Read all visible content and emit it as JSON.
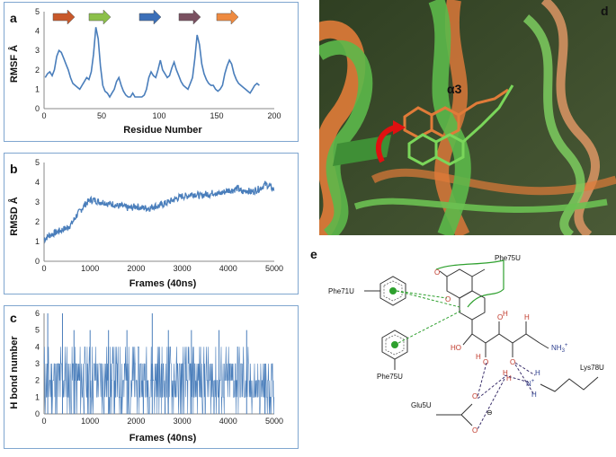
{
  "panels": {
    "a": {
      "letter": "a"
    },
    "b": {
      "letter": "b"
    },
    "c": {
      "letter": "c"
    },
    "d": {
      "letter": "d",
      "label": "α3"
    },
    "e": {
      "letter": "e"
    }
  },
  "chart_data": [
    {
      "type": "line",
      "panel": "a",
      "xlabel": "Residue Number",
      "ylabel": "RMSF Å",
      "xlim": [
        0,
        200
      ],
      "ylim": [
        0,
        5
      ],
      "xticks": [
        0,
        50,
        100,
        150,
        200
      ],
      "yticks": [
        0,
        1,
        2,
        3,
        4,
        5
      ],
      "series_color": "#4a7ebb",
      "x": [
        1,
        3,
        5,
        7,
        9,
        11,
        13,
        15,
        17,
        19,
        21,
        23,
        25,
        27,
        29,
        31,
        33,
        35,
        37,
        39,
        41,
        43,
        45,
        47,
        49,
        51,
        53,
        55,
        57,
        59,
        61,
        63,
        65,
        67,
        69,
        71,
        73,
        75,
        77,
        79,
        81,
        83,
        85,
        87,
        89,
        91,
        93,
        95,
        97,
        99,
        101,
        103,
        105,
        107,
        109,
        111,
        113,
        115,
        117,
        119,
        121,
        123,
        125,
        127,
        129,
        131,
        133,
        135,
        137,
        139,
        141,
        143,
        145,
        147,
        149,
        151,
        153,
        155,
        157,
        159,
        161,
        163,
        165,
        167,
        169,
        171,
        173,
        175,
        177,
        179,
        181,
        183,
        185,
        187
      ],
      "y": [
        1.6,
        1.8,
        1.9,
        1.7,
        2.0,
        2.7,
        3.0,
        2.9,
        2.6,
        2.3,
        2.0,
        1.6,
        1.3,
        1.2,
        1.1,
        1.0,
        1.2,
        1.4,
        1.6,
        1.5,
        1.9,
        2.8,
        4.2,
        3.6,
        2.2,
        1.2,
        0.9,
        0.8,
        0.6,
        0.8,
        1.0,
        1.4,
        1.6,
        1.2,
        0.9,
        0.7,
        0.6,
        0.6,
        0.8,
        0.6,
        0.6,
        0.6,
        0.6,
        0.7,
        1.0,
        1.6,
        1.9,
        1.7,
        1.6,
        2.0,
        2.5,
        2.0,
        1.8,
        1.6,
        1.7,
        2.1,
        2.4,
        2.0,
        1.7,
        1.4,
        1.2,
        1.1,
        1.0,
        1.3,
        1.6,
        2.6,
        3.8,
        3.3,
        2.3,
        1.8,
        1.5,
        1.3,
        1.2,
        1.2,
        1.0,
        0.9,
        1.0,
        1.2,
        1.8,
        2.2,
        2.5,
        2.3,
        1.8,
        1.5,
        1.3,
        1.2,
        1.1,
        1.0,
        0.9,
        0.8,
        1.0,
        1.2,
        1.3,
        1.2
      ]
    },
    {
      "type": "line",
      "panel": "b",
      "xlabel": "Frames (40ns)",
      "ylabel": "RMSD Å",
      "xlim": [
        0,
        5000
      ],
      "ylim": [
        0,
        5
      ],
      "xticks": [
        0,
        1000,
        2000,
        3000,
        4000,
        5000
      ],
      "yticks": [
        0,
        1,
        2,
        3,
        4,
        5
      ],
      "series_color": "#4a7ebb",
      "x": [
        0,
        100,
        200,
        300,
        400,
        500,
        600,
        700,
        800,
        900,
        1000,
        1100,
        1200,
        1300,
        1400,
        1500,
        1600,
        1700,
        1800,
        1900,
        2000,
        2100,
        2200,
        2300,
        2400,
        2500,
        2600,
        2700,
        2800,
        2900,
        3000,
        3100,
        3200,
        3300,
        3400,
        3500,
        3600,
        3700,
        3800,
        3900,
        4000,
        4100,
        4200,
        4300,
        4400,
        4500,
        4600,
        4700,
        4800,
        4900,
        5000
      ],
      "y": [
        1.1,
        1.3,
        1.4,
        1.5,
        1.6,
        1.7,
        1.9,
        2.3,
        2.6,
        2.9,
        3.1,
        3.1,
        3.0,
        3.0,
        2.9,
        2.9,
        2.8,
        2.8,
        2.7,
        2.7,
        2.8,
        2.7,
        2.7,
        2.7,
        2.8,
        2.8,
        2.9,
        3.0,
        3.1,
        3.2,
        3.3,
        3.3,
        3.4,
        3.4,
        3.3,
        3.4,
        3.4,
        3.5,
        3.4,
        3.5,
        3.6,
        3.6,
        3.7,
        3.5,
        3.6,
        3.5,
        3.6,
        3.7,
        3.9,
        3.8,
        3.6
      ]
    },
    {
      "type": "line",
      "panel": "c",
      "xlabel": "Frames (40ns)",
      "ylabel": "H bond number",
      "xlim": [
        0,
        5000
      ],
      "ylim": [
        0,
        6
      ],
      "xticks": [
        0,
        1000,
        2000,
        3000,
        4000,
        5000
      ],
      "yticks": [
        0,
        1,
        2,
        3,
        4,
        5,
        6
      ],
      "series_color": "#4a7ebb",
      "range_bands": [
        {
          "x0": 0,
          "x1": 4450,
          "low": 0,
          "high": 4
        },
        {
          "x0": 4450,
          "x1": 5000,
          "low": 0,
          "high": 3
        }
      ],
      "spikes": [
        {
          "x": 80,
          "y": 6
        },
        {
          "x": 400,
          "y": 6
        },
        {
          "x": 650,
          "y": 5
        },
        {
          "x": 1000,
          "y": 5
        },
        {
          "x": 1400,
          "y": 5
        },
        {
          "x": 1800,
          "y": 5
        },
        {
          "x": 2350,
          "y": 6
        },
        {
          "x": 2700,
          "y": 5
        },
        {
          "x": 3200,
          "y": 5
        },
        {
          "x": 3800,
          "y": 5
        },
        {
          "x": 4400,
          "y": 5
        },
        {
          "x": 4800,
          "y": 3
        }
      ]
    }
  ],
  "diagram_e": {
    "residues": {
      "phe75u_top": "Phe75U",
      "phe71u": "Phe71U",
      "phe75u_bottom": "Phe75U",
      "lys78u": "Lys78U",
      "glu5u": "Glu5U"
    },
    "atoms": {
      "o_ring": "O",
      "o_carbonyl": "O",
      "h1": "H",
      "o1": "O",
      "h2": "H",
      "ho": "HO",
      "o2": "O",
      "o3": "O",
      "h3": "H",
      "h4": "H",
      "nh3": "NH",
      "nh3_sup": "3",
      "nh3_charge": "+",
      "n_plus": "N",
      "n_plus_charge": "+",
      "h5": "H",
      "h6": "H",
      "h7": "H",
      "o4": "O",
      "o5": "O",
      "minus": "⊖"
    }
  },
  "colors": {
    "plot_line": "#4a7ebb",
    "frame": "#7fa6cf",
    "protein_green": "#5cb84a",
    "protein_orange": "#e07b39",
    "arrow_red": "#e01010",
    "hbond_purple": "#3a2f6b",
    "pistack_green": "#2ea02e"
  },
  "arrows_a": [
    {
      "color": "#c8582a"
    },
    {
      "color": "#8cc04a"
    },
    {
      "color": "#3b6fb8"
    },
    {
      "color": "#7a5060"
    },
    {
      "color": "#ee8a40"
    }
  ]
}
